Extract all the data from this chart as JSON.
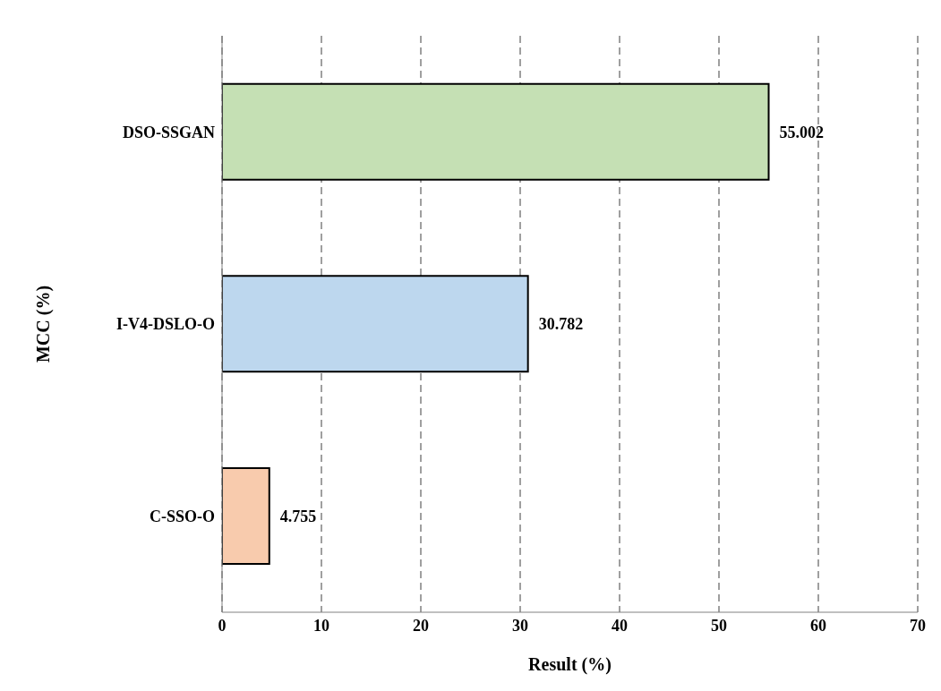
{
  "chart_data": {
    "type": "bar",
    "orientation": "horizontal",
    "categories": [
      "DSO-SSGAN",
      "I-V4-DSLO-O",
      "C-SSO-O"
    ],
    "values": [
      55.002,
      30.782,
      4.755
    ],
    "colors": [
      "#c5e0b4",
      "#bdd7ee",
      "#f8cbad"
    ],
    "xlabel": "Result (%)",
    "ylabel": "MCC (%)",
    "xlim": [
      0,
      70
    ],
    "xticks": [
      0,
      10,
      20,
      30,
      40,
      50,
      60,
      70
    ],
    "grid": "x",
    "data_labels": true
  }
}
